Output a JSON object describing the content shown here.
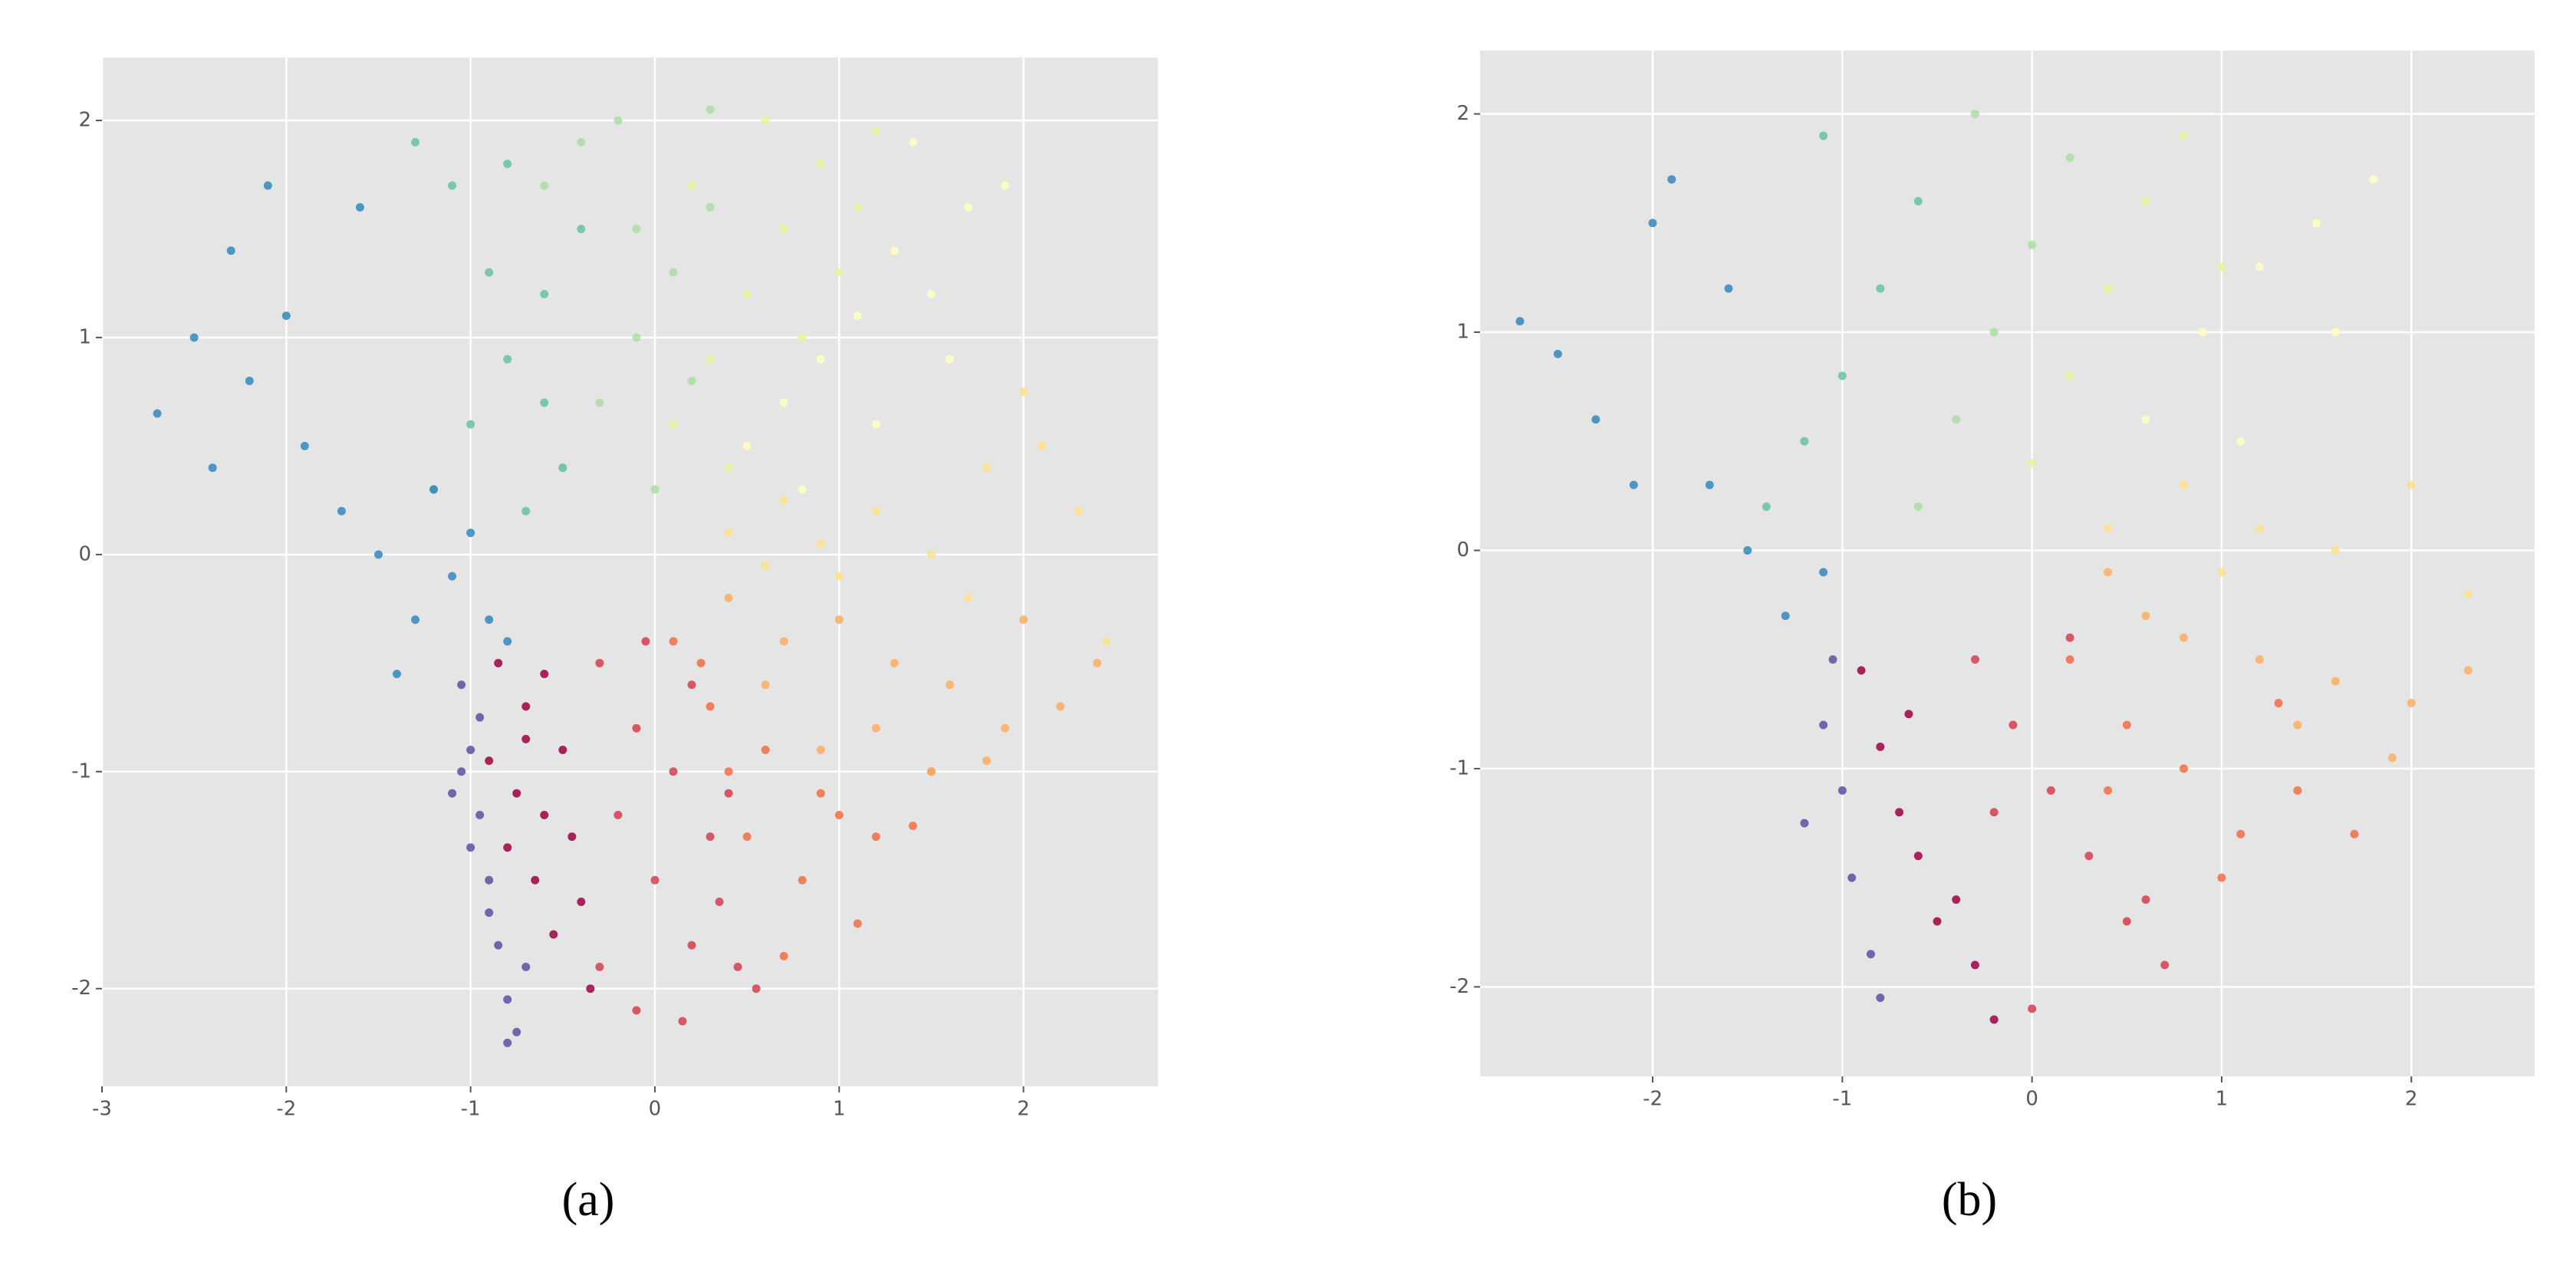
{
  "chart_data": [
    {
      "type": "scatter",
      "caption": "(a)",
      "xlim": [
        -3,
        2.73
      ],
      "ylim": [
        -2.45,
        2.29
      ],
      "xticks": [
        -3,
        -2,
        -1,
        0,
        1,
        2
      ],
      "yticks": [
        -2,
        -1,
        0,
        1,
        2
      ],
      "grid": true,
      "series": [
        {
          "color": "#5e4fa2",
          "x": [
            -1.05,
            -1.0,
            -0.95,
            -1.1,
            -0.9,
            -0.85,
            -1.0,
            -0.8,
            -0.75,
            -0.9,
            -0.7,
            -0.95,
            -1.05,
            -0.8
          ],
          "y": [
            -0.6,
            -0.9,
            -1.2,
            -1.1,
            -1.5,
            -1.8,
            -1.35,
            -2.05,
            -2.2,
            -1.65,
            -1.9,
            -0.75,
            -1.0,
            -2.25
          ]
        },
        {
          "color": "#9e0142",
          "x": [
            -0.85,
            -0.7,
            -0.6,
            -0.5,
            -0.75,
            -0.65,
            -0.45,
            -0.9,
            -0.55,
            -0.35,
            -0.8,
            -0.6,
            -0.4,
            -0.7
          ],
          "y": [
            -0.5,
            -0.7,
            -0.55,
            -0.9,
            -1.1,
            -1.5,
            -1.3,
            -0.95,
            -1.75,
            -2.0,
            -1.35,
            -1.2,
            -1.6,
            -0.85
          ]
        },
        {
          "color": "#d53e4f",
          "x": [
            -0.3,
            -0.1,
            0.1,
            0.3,
            -0.2,
            0.0,
            0.2,
            0.45,
            -0.3,
            0.15,
            -0.1,
            0.35,
            0.55,
            0.2,
            -0.05,
            0.4
          ],
          "y": [
            -0.5,
            -0.8,
            -1.0,
            -1.3,
            -1.2,
            -1.5,
            -1.8,
            -1.9,
            -1.9,
            -2.15,
            -2.1,
            -1.6,
            -2.0,
            -0.6,
            -0.4,
            -1.1
          ]
        },
        {
          "color": "#f46d43",
          "x": [
            0.1,
            0.3,
            0.6,
            0.9,
            1.2,
            1.4,
            0.5,
            0.8,
            1.1,
            0.7,
            0.4,
            1.5,
            1.0,
            0.25
          ],
          "y": [
            -0.4,
            -0.7,
            -0.9,
            -1.1,
            -1.3,
            -1.25,
            -1.3,
            -1.5,
            -1.7,
            -1.85,
            -1.0,
            -1.0,
            -1.2,
            -0.5
          ]
        },
        {
          "color": "#fdae61",
          "x": [
            0.4,
            0.7,
            1.0,
            1.3,
            1.6,
            1.9,
            2.2,
            0.9,
            1.5,
            1.8,
            2.4,
            0.6,
            1.2,
            2.0
          ],
          "y": [
            -0.2,
            -0.4,
            -0.3,
            -0.5,
            -0.6,
            -0.8,
            -0.7,
            -0.9,
            -1.0,
            -0.95,
            -0.5,
            -0.6,
            -0.8,
            -0.3
          ]
        },
        {
          "color": "#fee08b",
          "x": [
            0.4,
            0.6,
            0.9,
            1.2,
            1.5,
            1.8,
            2.1,
            2.3,
            2.45,
            1.0,
            1.7,
            2.0,
            0.7
          ],
          "y": [
            0.1,
            -0.05,
            0.05,
            0.2,
            0.0,
            0.4,
            0.5,
            0.2,
            -0.4,
            -0.1,
            -0.2,
            0.75,
            0.25
          ]
        },
        {
          "color": "#ffffbf",
          "x": [
            0.5,
            0.7,
            0.9,
            1.1,
            1.3,
            1.5,
            1.7,
            1.9,
            1.2,
            1.6,
            0.8,
            1.4
          ],
          "y": [
            0.5,
            0.7,
            0.9,
            1.1,
            1.4,
            1.2,
            1.6,
            1.7,
            0.6,
            0.9,
            0.3,
            1.9
          ]
        },
        {
          "color": "#e6f598",
          "x": [
            0.1,
            0.3,
            0.5,
            0.7,
            0.9,
            1.1,
            0.4,
            0.6,
            0.8,
            1.2,
            0.2,
            1.0
          ],
          "y": [
            0.6,
            0.9,
            1.2,
            1.5,
            1.8,
            1.6,
            0.4,
            2.0,
            1.0,
            1.95,
            1.7,
            1.3
          ]
        },
        {
          "color": "#abdda4",
          "x": [
            -0.5,
            -0.3,
            -0.1,
            0.1,
            0.3,
            -0.4,
            -0.2,
            0.0,
            0.2,
            -0.6,
            -0.1,
            0.3
          ],
          "y": [
            0.4,
            0.7,
            1.0,
            1.3,
            1.6,
            1.9,
            2.0,
            0.3,
            0.8,
            1.7,
            1.5,
            2.05
          ]
        },
        {
          "color": "#66c2a5",
          "x": [
            -1.2,
            -1.0,
            -0.8,
            -0.6,
            -0.4,
            -1.1,
            -0.9,
            -0.7,
            -0.5,
            -1.3,
            -0.8,
            -0.6
          ],
          "y": [
            0.3,
            0.6,
            0.9,
            1.2,
            1.5,
            1.7,
            1.3,
            0.2,
            0.4,
            1.9,
            1.8,
            0.7
          ]
        },
        {
          "color": "#3288bd",
          "x": [
            -2.7,
            -2.5,
            -2.3,
            -2.1,
            -1.9,
            -1.7,
            -1.5,
            -1.3,
            -1.1,
            -0.9,
            -2.4,
            -2.0,
            -1.6,
            -1.2,
            -0.8,
            -2.2,
            -1.4,
            -1.0
          ],
          "y": [
            0.65,
            1.0,
            1.4,
            1.7,
            0.5,
            0.2,
            0.0,
            -0.3,
            -0.1,
            -0.3,
            0.4,
            1.1,
            1.6,
            0.3,
            -0.4,
            0.8,
            -0.55,
            0.1
          ]
        }
      ]
    },
    {
      "type": "scatter",
      "caption": "(b)",
      "xlim": [
        -2.91,
        2.65
      ],
      "ylim": [
        -2.41,
        2.29
      ],
      "xticks": [
        -2,
        -1,
        0,
        1,
        2
      ],
      "yticks": [
        -2,
        -1,
        0,
        1,
        2
      ],
      "grid": true,
      "series": [
        {
          "color": "#5e4fa2",
          "x": [
            -1.1,
            -1.05,
            -1.0,
            -0.95,
            -0.85,
            -0.8,
            -1.2
          ],
          "y": [
            -0.8,
            -0.5,
            -1.1,
            -1.5,
            -1.85,
            -2.05,
            -1.25
          ]
        },
        {
          "color": "#9e0142",
          "x": [
            -0.9,
            -0.8,
            -0.7,
            -0.6,
            -0.5,
            -0.4,
            -0.3,
            -0.2,
            -0.65
          ],
          "y": [
            -0.55,
            -0.9,
            -1.2,
            -1.4,
            -1.7,
            -1.6,
            -1.9,
            -2.15,
            -0.75
          ]
        },
        {
          "color": "#d53e4f",
          "x": [
            -0.3,
            -0.1,
            0.1,
            0.3,
            0.5,
            0.7,
            0.0,
            0.2,
            -0.2,
            0.6
          ],
          "y": [
            -0.5,
            -0.8,
            -1.1,
            -1.4,
            -1.7,
            -1.9,
            -2.1,
            -0.4,
            -1.2,
            -1.6
          ]
        },
        {
          "color": "#f46d43",
          "x": [
            0.2,
            0.5,
            0.8,
            1.1,
            1.4,
            1.7,
            1.0,
            0.4,
            1.3
          ],
          "y": [
            -0.5,
            -0.8,
            -1.0,
            -1.3,
            -1.1,
            -1.3,
            -1.5,
            -1.1,
            -0.7
          ]
        },
        {
          "color": "#fdae61",
          "x": [
            0.4,
            0.8,
            1.2,
            1.6,
            2.0,
            2.3,
            0.6,
            1.4,
            1.9
          ],
          "y": [
            -0.1,
            -0.4,
            -0.5,
            -0.6,
            -0.7,
            -0.55,
            -0.3,
            -0.8,
            -0.95
          ]
        },
        {
          "color": "#fee08b",
          "x": [
            0.4,
            0.8,
            1.2,
            1.6,
            2.0,
            2.3,
            1.0
          ],
          "y": [
            0.1,
            0.3,
            0.1,
            0.0,
            0.3,
            -0.2,
            -0.1
          ]
        },
        {
          "color": "#ffffbf",
          "x": [
            0.6,
            0.9,
            1.2,
            1.5,
            1.8,
            1.1,
            1.6
          ],
          "y": [
            0.6,
            1.0,
            1.3,
            1.5,
            1.7,
            0.5,
            1.0
          ]
        },
        {
          "color": "#e6f598",
          "x": [
            0.0,
            0.2,
            0.4,
            0.6,
            0.8,
            1.0
          ],
          "y": [
            0.4,
            0.8,
            1.2,
            1.6,
            1.9,
            1.3
          ]
        },
        {
          "color": "#abdda4",
          "x": [
            -0.6,
            -0.4,
            -0.2,
            0.0,
            0.2,
            -0.3
          ],
          "y": [
            0.2,
            0.6,
            1.0,
            1.4,
            1.8,
            2.0
          ]
        },
        {
          "color": "#66c2a5",
          "x": [
            -1.4,
            -1.2,
            -1.0,
            -0.8,
            -0.6,
            -1.1
          ],
          "y": [
            0.2,
            0.5,
            0.8,
            1.2,
            1.6,
            1.9
          ]
        },
        {
          "color": "#3288bd",
          "x": [
            -2.7,
            -2.5,
            -2.3,
            -2.1,
            -1.9,
            -1.7,
            -1.5,
            -1.3,
            -1.1,
            -2.0,
            -1.6
          ],
          "y": [
            1.05,
            0.9,
            0.6,
            0.3,
            1.7,
            0.3,
            0.0,
            -0.3,
            -0.1,
            1.5,
            1.2
          ]
        }
      ]
    }
  ]
}
